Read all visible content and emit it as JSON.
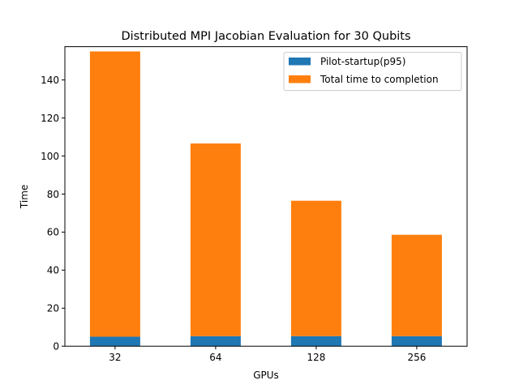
{
  "chart_data": {
    "type": "bar",
    "stacked": true,
    "title": "Distributed MPI Jacobian Evaluation for 30 Qubits",
    "xlabel": "GPUs",
    "ylabel": "Time",
    "categories": [
      "32",
      "64",
      "128",
      "256"
    ],
    "series": [
      {
        "name": "Pilot-startup(p95)",
        "values": [
          5.0,
          5.3,
          5.3,
          5.3
        ],
        "color": "#1f77b4"
      },
      {
        "name": "Total time to completion",
        "values": [
          150.0,
          101.3,
          71.2,
          53.3
        ],
        "color": "#ff7f0e"
      }
    ],
    "ylim": [
      0,
      157.5
    ],
    "yticks": [
      0,
      20,
      40,
      60,
      80,
      100,
      120,
      140
    ],
    "grid": false,
    "legend_position": "top-right"
  }
}
